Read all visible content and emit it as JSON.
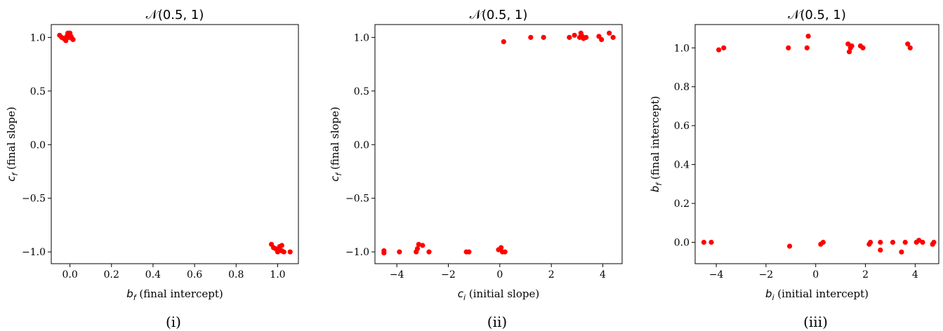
{
  "chart_data": [
    {
      "type": "scatter",
      "title": "𝒩(0.5, 1)",
      "xlabel": {
        "var": "b",
        "sub": "f",
        "text": " (final intercept)"
      },
      "ylabel": {
        "var": "c",
        "sub": "f",
        "text": " (final slope)"
      },
      "caption": "(i)",
      "xlim": [
        -0.09,
        1.1
      ],
      "ylim": [
        -1.11,
        1.12
      ],
      "xticks": [
        0.0,
        0.2,
        0.4,
        0.6,
        0.8,
        1.0
      ],
      "xtick_labels": [
        "0.0",
        "0.2",
        "0.4",
        "0.6",
        "0.8",
        "1.0"
      ],
      "yticks": [
        -1.0,
        -0.5,
        0.0,
        0.5,
        1.0
      ],
      "ytick_labels": [
        "−1.0",
        "−0.5",
        "0.0",
        "0.5",
        "1.0"
      ],
      "marker_color": "#ff0000",
      "points": [
        [
          -0.05,
          1.02
        ],
        [
          -0.04,
          1.0
        ],
        [
          -0.03,
          0.99
        ],
        [
          -0.02,
          0.97
        ],
        [
          -0.015,
          1.01
        ],
        [
          -0.01,
          1.04
        ],
        [
          0.0,
          1.04
        ],
        [
          0.005,
          1.01
        ],
        [
          0.01,
          0.99
        ],
        [
          0.015,
          0.98
        ],
        [
          -0.005,
          1.0
        ],
        [
          0.0,
          1.02
        ],
        [
          0.97,
          -0.93
        ],
        [
          0.98,
          -0.96
        ],
        [
          0.99,
          -0.97
        ],
        [
          1.0,
          -0.98
        ],
        [
          1.0,
          -1.0
        ],
        [
          1.01,
          -0.95
        ],
        [
          1.02,
          -0.94
        ],
        [
          1.02,
          -0.99
        ],
        [
          1.03,
          -1.0
        ],
        [
          1.06,
          -1.0
        ]
      ]
    },
    {
      "type": "scatter",
      "title": "𝒩(0.5, 1)",
      "xlabel": {
        "var": "c",
        "sub": "i",
        "text": " (initial slope)"
      },
      "ylabel": {
        "var": "c",
        "sub": "f",
        "text": " (final slope)"
      },
      "caption": "(ii)",
      "xlim": [
        -4.85,
        4.75
      ],
      "ylim": [
        -1.11,
        1.12
      ],
      "xticks": [
        -4,
        -2,
        0,
        2,
        4
      ],
      "xtick_labels": [
        "−4",
        "−2",
        "0",
        "2",
        "4"
      ],
      "yticks": [
        -1.0,
        -0.5,
        0.0,
        0.5,
        1.0
      ],
      "ytick_labels": [
        "−1.0",
        "−0.5",
        "0.0",
        "0.5",
        "1.0"
      ],
      "marker_color": "#ff0000",
      "points": [
        [
          -4.5,
          -1.01
        ],
        [
          -4.5,
          -0.99
        ],
        [
          -3.9,
          -1.0
        ],
        [
          -3.25,
          -1.0
        ],
        [
          -3.2,
          -0.97
        ],
        [
          -3.15,
          -0.93
        ],
        [
          -3.0,
          -0.94
        ],
        [
          -2.75,
          -1.0
        ],
        [
          -1.3,
          -1.0
        ],
        [
          -1.2,
          -1.0
        ],
        [
          -0.05,
          -0.98
        ],
        [
          0.05,
          -0.96
        ],
        [
          0.1,
          -1.0
        ],
        [
          0.2,
          -1.0
        ],
        [
          0.15,
          0.96
        ],
        [
          1.2,
          1.0
        ],
        [
          1.7,
          1.0
        ],
        [
          2.7,
          1.0
        ],
        [
          2.9,
          1.02
        ],
        [
          3.1,
          1.0
        ],
        [
          3.15,
          1.04
        ],
        [
          3.2,
          1.01
        ],
        [
          3.25,
          0.99
        ],
        [
          3.35,
          1.0
        ],
        [
          3.85,
          1.01
        ],
        [
          3.95,
          0.98
        ],
        [
          4.25,
          1.04
        ],
        [
          4.4,
          1.0
        ]
      ]
    },
    {
      "type": "scatter",
      "title": "𝒩(0.5, 1)",
      "xlabel": {
        "var": "b",
        "sub": "i",
        "text": " (initial intercept)"
      },
      "ylabel": {
        "var": "b",
        "sub": "f",
        "text": " (final intercept)"
      },
      "caption": "(iii)",
      "xlim": [
        -4.85,
        4.95
      ],
      "ylim": [
        -0.11,
        1.12
      ],
      "xticks": [
        -4,
        -2,
        0,
        2,
        4
      ],
      "xtick_labels": [
        "−4",
        "−2",
        "0",
        "2",
        "4"
      ],
      "yticks": [
        0.0,
        0.2,
        0.4,
        0.6,
        0.8,
        1.0
      ],
      "ytick_labels": [
        "0.0",
        "0.2",
        "0.4",
        "0.6",
        "0.8",
        "1.0"
      ],
      "marker_color": "#ff0000",
      "points": [
        [
          -3.9,
          0.99
        ],
        [
          -3.7,
          1.0
        ],
        [
          -1.1,
          1.0
        ],
        [
          -0.35,
          1.0
        ],
        [
          -0.3,
          1.06
        ],
        [
          1.3,
          1.02
        ],
        [
          1.35,
          0.98
        ],
        [
          1.4,
          1.0
        ],
        [
          1.45,
          1.01
        ],
        [
          1.8,
          1.01
        ],
        [
          1.9,
          1.0
        ],
        [
          3.7,
          1.02
        ],
        [
          3.8,
          1.0
        ],
        [
          -4.5,
          0.0
        ],
        [
          -4.2,
          0.0
        ],
        [
          -1.05,
          -0.02
        ],
        [
          0.2,
          -0.01
        ],
        [
          0.3,
          0.0
        ],
        [
          2.15,
          -0.01
        ],
        [
          2.2,
          0.0
        ],
        [
          2.6,
          -0.04
        ],
        [
          2.6,
          0.0
        ],
        [
          3.1,
          0.0
        ],
        [
          3.45,
          -0.05
        ],
        [
          3.6,
          0.0
        ],
        [
          4.05,
          0.0
        ],
        [
          4.15,
          0.01
        ],
        [
          4.3,
          0.0
        ],
        [
          4.7,
          -0.01
        ],
        [
          4.75,
          0.0
        ]
      ]
    }
  ]
}
